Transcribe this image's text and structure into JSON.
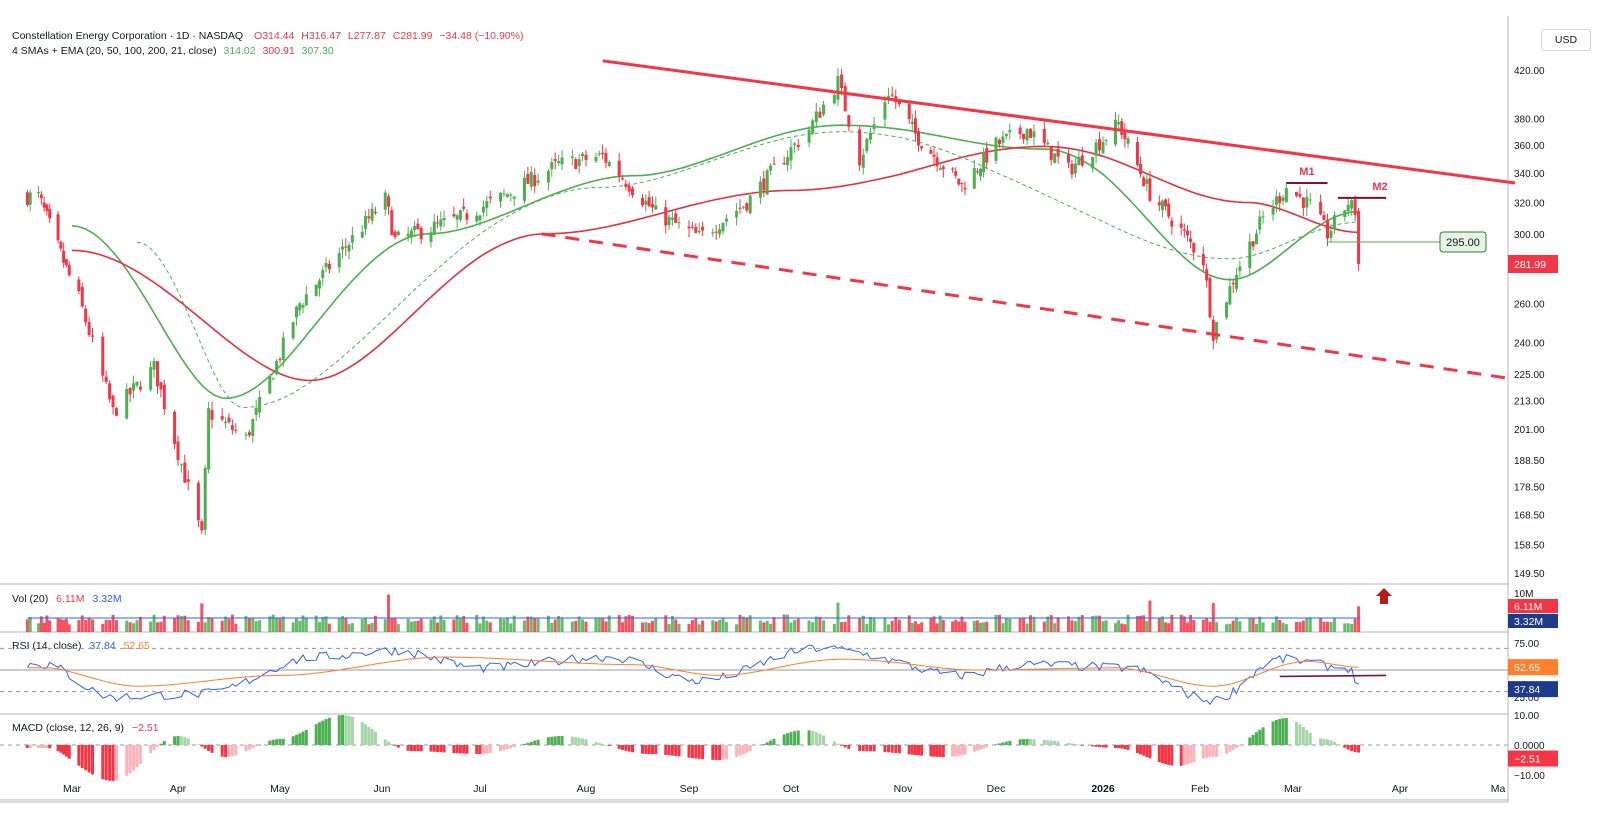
{
  "header": {
    "symbol": "Constellation Energy Corporation · 1D · NASDAQ",
    "open": "O314.44",
    "high": "H316.47",
    "low": "L277.87",
    "close": "C281.99",
    "change": "−34.48 (−10.90%)",
    "ma_label": "4 SMAs + EMA (20, 50, 100, 200, 21, close)",
    "ma_values": [
      "314.02",
      "300.91",
      "307.30"
    ],
    "currency": "USD"
  },
  "colors": {
    "up": "#4caf50",
    "down": "#f23645",
    "sma20": "#4caf50",
    "sma50": "#e53040",
    "rsi": "#2962ff",
    "rsi_ma": "#ff7f2a",
    "volume_ma": "#2962ff",
    "trendline": "#f23645",
    "resistance": "#880e2c"
  },
  "chart_data": [
    {
      "type": "candlestick",
      "name": "price",
      "scale": "log",
      "x_ticks": [
        "Mar",
        "Apr",
        "May",
        "Jun",
        "Jul",
        "Aug",
        "Sep",
        "Oct",
        "Nov",
        "Dec",
        "2026",
        "Feb",
        "Mar",
        "Apr",
        "Ma"
      ],
      "y_ticks": [
        "420.00",
        "380.00",
        "360.00",
        "340.00",
        "320.00",
        "300.00",
        "260.00",
        "240.00",
        "225.00",
        "213.00",
        "201.00",
        "188.50",
        "178.50",
        "168.50",
        "158.50",
        "149.50"
      ],
      "ylim": [
        146,
        440
      ],
      "last_price": "281.99",
      "level_label": "295.00",
      "pattern_labels": [
        "M1",
        "M2"
      ],
      "swing_points": [
        {
          "date": "2025-02-17",
          "price": 324
        },
        {
          "date": "2025-03-03",
          "price": 263
        },
        {
          "date": "2025-03-13",
          "price": 208
        },
        {
          "date": "2025-03-25",
          "price": 228
        },
        {
          "date": "2025-04-08",
          "price": 161
        },
        {
          "date": "2025-04-10",
          "price": 208
        },
        {
          "date": "2025-04-21",
          "price": 197
        },
        {
          "date": "2025-05-07",
          "price": 260
        },
        {
          "date": "2025-05-20",
          "price": 290
        },
        {
          "date": "2025-06-02",
          "price": 322
        },
        {
          "date": "2025-06-05",
          "price": 296
        },
        {
          "date": "2025-06-25",
          "price": 310
        },
        {
          "date": "2025-07-07",
          "price": 323
        },
        {
          "date": "2025-07-24",
          "price": 346
        },
        {
          "date": "2025-08-06",
          "price": 352
        },
        {
          "date": "2025-08-22",
          "price": 313
        },
        {
          "date": "2025-09-04",
          "price": 298
        },
        {
          "date": "2025-09-18",
          "price": 320
        },
        {
          "date": "2025-10-06",
          "price": 372
        },
        {
          "date": "2025-10-14",
          "price": 410
        },
        {
          "date": "2025-10-20",
          "price": 350
        },
        {
          "date": "2025-10-28",
          "price": 402
        },
        {
          "date": "2025-11-05",
          "price": 368
        },
        {
          "date": "2025-11-20",
          "price": 331
        },
        {
          "date": "2025-12-01",
          "price": 360
        },
        {
          "date": "2025-12-10",
          "price": 372
        },
        {
          "date": "2025-12-22",
          "price": 342
        },
        {
          "date": "2026-01-06",
          "price": 376
        },
        {
          "date": "2026-01-16",
          "price": 326
        },
        {
          "date": "2026-01-26",
          "price": 302
        },
        {
          "date": "2026-02-02",
          "price": 284
        },
        {
          "date": "2026-02-05",
          "price": 245
        },
        {
          "date": "2026-02-12",
          "price": 278
        },
        {
          "date": "2026-02-20",
          "price": 310
        },
        {
          "date": "2026-02-27",
          "price": 330
        },
        {
          "date": "2026-03-06",
          "price": 318
        },
        {
          "date": "2026-03-11",
          "price": 300
        },
        {
          "date": "2026-03-17",
          "price": 320
        },
        {
          "date": "2026-03-19",
          "price": 314.44
        },
        {
          "date": "2026-03-20",
          "price": 281.99
        }
      ],
      "series": [
        {
          "name": "20",
          "values_at": [
            "2025-03-01:305",
            "2025-04-15:214",
            "2025-06-15:300",
            "2025-08-15:338",
            "2025-10-15:375",
            "2025-12-15:357",
            "2026-02-10:273",
            "2026-03-20:314.02"
          ]
        },
        {
          "name": "50",
          "values_at": [
            "2025-03-01:290",
            "2025-05-10:222",
            "2025-07-20:300",
            "2025-10-01:328",
            "2025-12-15:359",
            "2026-02-15:320",
            "2026-03-20:300.91"
          ]
        },
        {
          "name": "21",
          "values_at": [
            "2025-03-20:295",
            "2025-04-20:210",
            "2025-08-05:330",
            "2025-10-15:370",
            "2026-02-10:285",
            "2026-03-20:307.30"
          ]
        }
      ],
      "trendlines": [
        {
          "style": "solid",
          "from": {
            "date": "2025-08-06",
            "price": 428
          },
          "to": {
            "date": "2026-05-06",
            "price": 333
          }
        },
        {
          "style": "dashed",
          "from": {
            "date": "2025-07-19",
            "price": 300
          },
          "to": {
            "date": "2026-05-04",
            "price": 223
          }
        },
        {
          "style": "solid",
          "name": "M1",
          "from": {
            "date": "2026-02-27",
            "price": 333
          },
          "to": {
            "date": "2026-03-11",
            "price": 333
          }
        },
        {
          "style": "solid",
          "name": "M2",
          "from": {
            "date": "2026-03-14",
            "price": 323
          },
          "to": {
            "date": "2026-03-28",
            "price": 323
          }
        }
      ]
    },
    {
      "type": "bar",
      "name": "volume",
      "label": "Vol (20)",
      "values_label": [
        "6.11M",
        "3.32M"
      ],
      "y_ticks": [
        "10M"
      ],
      "ylim": [
        0,
        10
      ],
      "units": "M",
      "peaks": [
        {
          "date": "2025-06-03",
          "value": 8.9
        },
        {
          "date": "2025-04-08",
          "value": 6.8
        },
        {
          "date": "2025-10-14",
          "value": 7.0
        },
        {
          "date": "2026-01-16",
          "value": 7.5
        },
        {
          "date": "2026-02-05",
          "value": 6.9
        },
        {
          "date": "2026-03-20",
          "value": 6.11
        }
      ],
      "average": 3.32
    },
    {
      "type": "line",
      "name": "RSI",
      "label": "RSI (14, close)",
      "values_label": [
        "37.84",
        "52.65"
      ],
      "y_ticks": [
        "75.00",
        "25.00"
      ],
      "ylim": [
        20,
        80
      ],
      "bands": [
        70,
        30
      ],
      "midline": 50,
      "series": [
        {
          "name": "RSI",
          "points": [
            "2025-02-20:55",
            "2025-03-13:25",
            "2025-04-08:28",
            "2025-05-12:62",
            "2025-06-05:68",
            "2025-07-01:52",
            "2025-08-08:62",
            "2025-09-04:40",
            "2025-10-09:70",
            "2025-11-20:45",
            "2025-12-10:55",
            "2026-01-08:52",
            "2026-02-05:22",
            "2026-02-25:60",
            "2026-03-17:52",
            "2026-03-20:37.84"
          ]
        },
        {
          "name": "MA",
          "points": [
            "2025-02-20:52",
            "2025-03-20:35",
            "2025-05-01:45",
            "2025-06-20:62",
            "2025-08-15:55",
            "2025-09-10:45",
            "2025-10-15:60",
            "2025-11-25:50",
            "2026-01-05:52",
            "2026-02-05:35",
            "2026-03-05:58",
            "2026-03-20:52.65"
          ]
        }
      ],
      "support_line": {
        "from": {
          "date": "2026-02-25",
          "value": 44
        },
        "to": {
          "date": "2026-03-28",
          "value": 45
        }
      }
    },
    {
      "type": "bar",
      "name": "MACD",
      "label": "MACD (close, 12, 26, 9)",
      "values_label": [
        "−2.51"
      ],
      "y_ticks": [
        "10.00",
        "0.0000",
        "−10.00"
      ],
      "ylim": [
        -13,
        14
      ],
      "histogram_points": [
        "2025-02-20:-1",
        "2025-03-13:-12",
        "2025-04-01:3",
        "2025-04-15:-4",
        "2025-05-01:2",
        "2025-05-20:10",
        "2025-06-10:-2",
        "2025-07-01:-3",
        "2025-07-25:3",
        "2025-08-20:-3",
        "2025-09-10:-5",
        "2025-10-05:5",
        "2025-10-20:-2",
        "2025-11-15:-4",
        "2025-12-10:2",
        "2026-01-05:-1",
        "2026-01-25:-7",
        "2026-02-05:-4",
        "2026-02-27:9",
        "2026-03-10:2",
        "2026-03-20:-2.51"
      ]
    }
  ]
}
